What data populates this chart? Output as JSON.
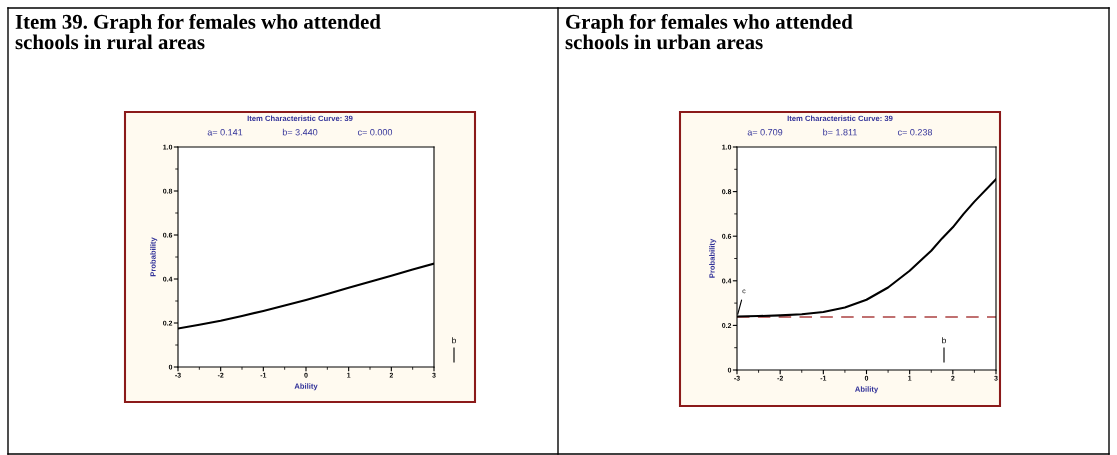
{
  "chart_data": [
    {
      "type": "line",
      "title": "Item 39. Graph for females who attended\nschools in rural areas",
      "subtitle": "Item Characteristic Curve: 39",
      "xlabel": "Ability",
      "ylabel": "Probability",
      "x": [
        -3,
        -2.5,
        -2,
        -1.5,
        -1,
        -0.5,
        0,
        0.5,
        1,
        1.5,
        2,
        2.5,
        3
      ],
      "series": [
        {
          "color": "#000000",
          "values": [
            0.175,
            0.192,
            0.21,
            0.232,
            0.255,
            0.28,
            0.305,
            0.332,
            0.36,
            0.388,
            0.415,
            0.443,
            0.47
          ]
        }
      ],
      "xlim": [
        -3,
        3
      ],
      "ylim": [
        0,
        1
      ],
      "xticks": [
        -3,
        -2,
        -1,
        0,
        1,
        2,
        3
      ],
      "yticks": [
        0,
        0.2,
        0.4,
        0.6,
        0.8,
        {
          "value": 1,
          "label": "1.0"
        }
      ],
      "annotations": [
        "a= 0.141",
        "b= 3.440",
        "c= 0.000",
        "b"
      ],
      "grid": false,
      "legend": false,
      "line_style": "solid",
      "marker": "none"
    },
    {
      "type": "line",
      "title": "Graph for females who attended\nschools in urban areas",
      "subtitle": "Item Characteristic Curve: 39",
      "xlabel": "Ability",
      "ylabel": "Probability",
      "x": [
        -3,
        -2.5,
        -2,
        -1.5,
        -1,
        -0.5,
        0,
        0.5,
        1,
        1.5,
        1.75,
        2,
        2.25,
        2.5,
        3
      ],
      "series": [
        {
          "color": "#000000",
          "values": [
            0.24,
            0.242,
            0.245,
            0.25,
            0.26,
            0.28,
            0.315,
            0.37,
            0.445,
            0.535,
            0.59,
            0.64,
            0.7,
            0.755,
            0.855
          ]
        }
      ],
      "xlim": [
        -3,
        3
      ],
      "ylim": [
        0,
        1
      ],
      "xticks": [
        -3,
        -2,
        -1,
        0,
        1,
        2,
        3
      ],
      "yticks": [
        0,
        0.2,
        0.4,
        0.6,
        0.8,
        {
          "value": 1,
          "label": "1.0"
        }
      ],
      "ref_lines": [
        {
          "axis": "y",
          "value": 0.238,
          "color": "#c07070",
          "line_style": "dashed"
        }
      ],
      "annotations": [
        "a= 0.709",
        "b= 1.811",
        "c= 0.238",
        "b",
        {
          "text": "c",
          "x": -3,
          "y": 0.238
        }
      ],
      "grid": false,
      "legend": false,
      "line_style": "solid",
      "marker": "none"
    }
  ]
}
